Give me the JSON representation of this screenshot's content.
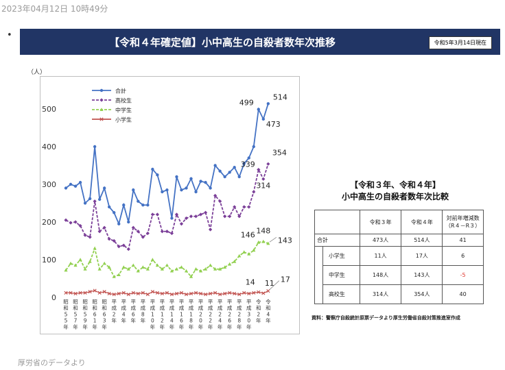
{
  "timestamp": "2023年04月12日 10時49分",
  "bullet": "•",
  "banner": {
    "title": "【令和４年確定値】小中高生の自殺者数年次推移",
    "as_of": "令和5年3月14日現在"
  },
  "colors": {
    "banner": "#213565",
    "total": "#4472C4",
    "high": "#7B3F98",
    "junior": "#92D050",
    "elem": "#C0504D"
  },
  "chart_data": {
    "type": "line",
    "unit_label": "（人）",
    "ylim": [
      0,
      560
    ],
    "yticks": [
      0,
      100,
      200,
      300,
      400,
      500
    ],
    "categories": [
      "昭和55年",
      "昭和56年",
      "昭和57年",
      "昭和58年",
      "昭和59年",
      "昭和60年",
      "昭和61年",
      "昭和62年",
      "昭和63年",
      "平成元年",
      "平成2年",
      "平成3年",
      "平成4年",
      "平成5年",
      "平成6年",
      "平成7年",
      "平成8年",
      "平成9年",
      "平成10年",
      "平成11年",
      "平成12年",
      "平成13年",
      "平成14年",
      "平成15年",
      "平成16年",
      "平成17年",
      "平成18年",
      "平成19年",
      "平成20年",
      "平成21年",
      "平成22年",
      "平成23年",
      "平成24年",
      "平成25年",
      "平成26年",
      "平成27年",
      "平成28年",
      "平成29年",
      "平成30年",
      "令和元年",
      "令和2年",
      "令和3年",
      "令和4年"
    ],
    "x_tick_labels": [
      "昭和55年",
      "昭和57年",
      "昭和59年",
      "昭和61年",
      "昭和63年",
      "平成2年",
      "平成4年",
      "平成6年",
      "平成8年",
      "平成10年",
      "平成12年",
      "平成14年",
      "平成16年",
      "平成18年",
      "平成20年",
      "平成22年",
      "平成24年",
      "平成26年",
      "平成28年",
      "平成30年",
      "令和2年",
      "令和4年"
    ],
    "series": [
      {
        "name": "合計",
        "key": "total",
        "marker": "circle",
        "dashed": false,
        "values": [
          290,
          300,
          295,
          305,
          250,
          262,
          400,
          260,
          290,
          240,
          225,
          195,
          245,
          200,
          285,
          255,
          245,
          245,
          340,
          325,
          280,
          285,
          210,
          320,
          285,
          290,
          315,
          280,
          308,
          305,
          290,
          350,
          335,
          320,
          332,
          345,
          320,
          355,
          370,
          400,
          499,
          473,
          514
        ]
      },
      {
        "name": "高校生",
        "key": "high",
        "marker": "diamond",
        "dashed": true,
        "values": [
          205,
          198,
          200,
          190,
          165,
          160,
          255,
          175,
          185,
          155,
          150,
          135,
          138,
          128,
          185,
          175,
          160,
          170,
          220,
          220,
          175,
          175,
          170,
          220,
          195,
          210,
          215,
          215,
          220,
          225,
          180,
          270,
          255,
          215,
          215,
          240,
          215,
          240,
          240,
          280,
          339,
          314,
          354
        ]
      },
      {
        "name": "中学生",
        "key": "junior",
        "marker": "triangle",
        "dashed": true,
        "values": [
          72,
          90,
          85,
          100,
          75,
          95,
          130,
          75,
          90,
          80,
          55,
          60,
          80,
          75,
          85,
          70,
          80,
          75,
          100,
          85,
          75,
          85,
          70,
          75,
          80,
          70,
          55,
          75,
          70,
          75,
          85,
          75,
          75,
          80,
          88,
          95,
          110,
          120,
          115,
          125,
          146,
          148,
          143
        ]
      },
      {
        "name": "小学生",
        "key": "elem",
        "marker": "x",
        "dashed": false,
        "values": [
          12,
          12,
          10,
          12,
          12,
          15,
          18,
          12,
          15,
          10,
          8,
          10,
          12,
          8,
          12,
          10,
          12,
          8,
          15,
          12,
          10,
          12,
          8,
          10,
          12,
          8,
          10,
          12,
          10,
          8,
          10,
          12,
          8,
          10,
          12,
          10,
          8,
          12,
          10,
          12,
          14,
          11,
          17
        ]
      }
    ],
    "data_labels": [
      {
        "series": "total",
        "index": 40,
        "text": "499"
      },
      {
        "series": "total",
        "index": 41,
        "text": "473"
      },
      {
        "series": "total",
        "index": 42,
        "text": "514"
      },
      {
        "series": "high",
        "index": 40,
        "text": "339"
      },
      {
        "series": "high",
        "index": 41,
        "text": "314"
      },
      {
        "series": "high",
        "index": 42,
        "text": "354"
      },
      {
        "series": "junior",
        "index": 40,
        "text": "146"
      },
      {
        "series": "junior",
        "index": 41,
        "text": "148"
      },
      {
        "series": "junior",
        "index": 42,
        "text": "143"
      },
      {
        "series": "elem",
        "index": 40,
        "text": "14"
      },
      {
        "series": "elem",
        "index": 41,
        "text": "11"
      },
      {
        "series": "elem",
        "index": 42,
        "text": "17"
      }
    ],
    "legend_position": "top-left",
    "grid": false
  },
  "comparison": {
    "title_line1": "【令和３年、令和４年】",
    "title_line2": "小中高生の自殺者数年次比較",
    "headers": [
      "",
      "令和３年",
      "令和４年",
      "対前年増減数",
      "（R４－R３）"
    ],
    "total_row": {
      "label": "合計",
      "r3": "473人",
      "r4": "514人",
      "diff": "41"
    },
    "sub_rows": [
      {
        "label": "小学生",
        "r3": "11人",
        "r4": "17人",
        "diff": "6"
      },
      {
        "label": "中学生",
        "r3": "148人",
        "r4": "143人",
        "diff": "-5"
      },
      {
        "label": "高校生",
        "r3": "314人",
        "r4": "354人",
        "diff": "40"
      }
    ]
  },
  "source": "資料：警察庁自殺統計原票データより厚生労働省自殺対策推進室作成",
  "footer": "厚労省のデータより"
}
